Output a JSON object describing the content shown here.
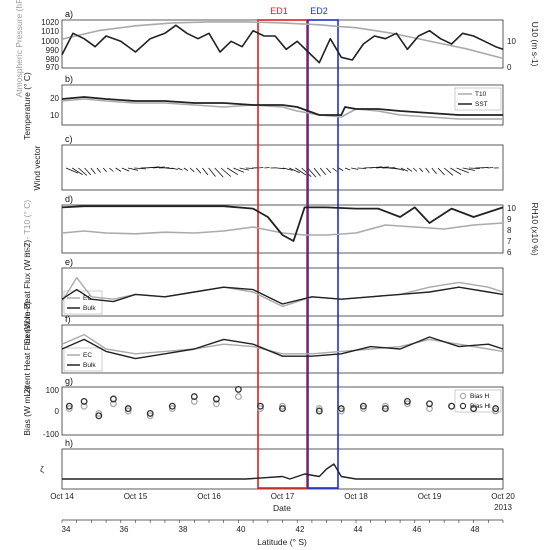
{
  "chart_data": [
    {
      "type": "line",
      "panel_label": "a)",
      "ylabel_left": "Atmospheric Pressure (hPa)",
      "ylabel_right": "U10 (m s-1)",
      "yticks_left": [
        "1020",
        "1010",
        "1000",
        "990",
        "980",
        "970"
      ],
      "yticks_right": [
        "10",
        "0"
      ],
      "ylim_left": [
        970,
        1020
      ],
      "ylim_right": [
        0,
        18
      ],
      "series": [
        {
          "name": "Atmospheric Pressure",
          "axis": "left",
          "color": "#aaaaaa",
          "x": [
            14,
            14.5,
            15,
            15.5,
            16,
            16.5,
            17,
            17.5,
            17.8,
            18,
            18.5,
            19,
            19.5,
            20
          ],
          "y": [
            1000,
            1009,
            1014,
            1017,
            1018,
            1018,
            1017,
            1015,
            1013,
            1012,
            1006,
            998,
            990,
            980
          ]
        },
        {
          "name": "U10",
          "axis": "right",
          "color": "#222222",
          "x": [
            14,
            14.15,
            14.3,
            14.45,
            14.6,
            14.8,
            15,
            15.2,
            15.4,
            15.55,
            15.7,
            15.85,
            16,
            16.15,
            16.3,
            16.45,
            16.6,
            16.75,
            16.9,
            17.05,
            17.2,
            17.35,
            17.5,
            17.65,
            17.8,
            17.95,
            18.1,
            18.25,
            18.4,
            18.55,
            18.7,
            18.85,
            19,
            19.15,
            19.3,
            19.45,
            19.6,
            19.75,
            19.9,
            20
          ],
          "y": [
            5,
            13,
            11,
            8,
            12,
            10,
            6,
            11,
            13,
            16,
            13,
            11,
            13,
            6,
            10,
            8,
            14,
            12,
            12,
            7,
            10,
            6,
            2,
            11,
            4,
            3,
            9,
            12,
            11,
            13,
            7,
            12,
            14,
            11,
            9,
            13,
            12,
            10,
            8,
            7
          ]
        }
      ]
    },
    {
      "type": "line",
      "panel_label": "b)",
      "ylabel": "Temperature (° C)",
      "yticks": [
        "20",
        "10"
      ],
      "ylim": [
        5,
        25
      ],
      "legend": [
        "T10",
        "SST"
      ],
      "legend_position": "top-right",
      "series": [
        {
          "name": "T10",
          "color": "#aaaaaa",
          "x": [
            14,
            14.3,
            14.6,
            15,
            15.4,
            15.8,
            16.2,
            16.6,
            17,
            17.2,
            17.5,
            17.8,
            18,
            18.3,
            18.6,
            19,
            19.4,
            19.8,
            20
          ],
          "y": [
            17,
            18,
            17,
            16,
            16,
            15,
            14,
            15,
            14,
            12,
            10,
            9,
            13,
            12,
            10,
            9,
            8,
            8,
            8
          ]
        },
        {
          "name": "SST",
          "color": "#222222",
          "x": [
            14,
            14.3,
            14.6,
            15,
            15.4,
            15.8,
            16.2,
            16.6,
            17,
            17.2,
            17.5,
            17.6,
            17.8,
            17.85,
            18,
            18.3,
            18.6,
            19,
            19.4,
            19.8,
            20
          ],
          "y": [
            18,
            19,
            18,
            17,
            17,
            16,
            16,
            15,
            15,
            14,
            10,
            10,
            10,
            14,
            13,
            13,
            12,
            11,
            10,
            10,
            10
          ]
        }
      ]
    },
    {
      "type": "quiver",
      "panel_label": "c)",
      "ylabel": "Wind vector",
      "description": "Arrows along time axis"
    },
    {
      "type": "line",
      "panel_label": "d)",
      "ylabel_left": "SST - T10 (° C)",
      "ylabel_right": "RH10 (x10 %)",
      "yticks_right": [
        "10",
        "9",
        "8",
        "7",
        "6"
      ],
      "ylim_right": [
        6,
        10
      ],
      "series": [
        {
          "name": "SST - T10",
          "axis": "left",
          "color": "#aaaaaa",
          "x": [
            14,
            14.3,
            14.6,
            15,
            15.4,
            15.8,
            16.2,
            16.6,
            17,
            17.3,
            17.6,
            18,
            18.4,
            18.8,
            19.2,
            19.6,
            20
          ],
          "y": [
            1,
            1.5,
            1,
            0.8,
            1.2,
            1,
            1.5,
            2.5,
            1,
            0.5,
            0.5,
            1,
            3,
            2.5,
            2,
            3,
            3.5
          ]
        },
        {
          "name": "RH10",
          "axis": "right",
          "color": "#222222",
          "x": [
            14,
            14.3,
            14.6,
            15,
            15.4,
            15.8,
            16.2,
            16.6,
            16.8,
            17,
            17.15,
            17.3,
            17.6,
            18,
            18.3,
            18.6,
            18.8,
            19,
            19.3,
            19.6,
            20
          ],
          "y": [
            9.8,
            9.9,
            9.9,
            9.9,
            9.9,
            9.9,
            9.9,
            9.7,
            9,
            7.5,
            7,
            9.8,
            9.8,
            9.7,
            9.7,
            9,
            9.8,
            8.5,
            9.7,
            9,
            9.8
          ]
        }
      ]
    },
    {
      "type": "line",
      "panel_label": "e)",
      "ylabel": "Sensible Heat Flux (W m-2)",
      "legend": [
        "EC",
        "Bulk"
      ],
      "legend_position": "bottom-left",
      "series": [
        {
          "name": "EC",
          "color": "#aaaaaa",
          "x": [
            14,
            14.2,
            14.4,
            14.7,
            15,
            15.4,
            15.8,
            16.2,
            16.6,
            17,
            17.4,
            17.8,
            18.2,
            18.6,
            19,
            19.4,
            19.8,
            20
          ],
          "y": [
            -10,
            40,
            0,
            -5,
            5,
            0,
            10,
            20,
            10,
            -20,
            0,
            -5,
            0,
            5,
            20,
            30,
            20,
            10
          ]
        },
        {
          "name": "Bulk",
          "color": "#222222",
          "x": [
            14,
            14.2,
            14.4,
            14.7,
            15,
            15.4,
            15.8,
            16.2,
            16.6,
            17,
            17.4,
            17.8,
            18.2,
            18.6,
            19,
            19.4,
            19.8,
            20
          ],
          "y": [
            -5,
            15,
            -5,
            -10,
            5,
            0,
            10,
            20,
            15,
            -15,
            0,
            -5,
            0,
            5,
            10,
            20,
            10,
            5
          ]
        }
      ]
    },
    {
      "type": "line",
      "panel_label": "f)",
      "ylabel": "Latent Heat Flux (W m-2)",
      "legend": [
        "EC",
        "Bulk"
      ],
      "legend_position": "bottom-left",
      "series": [
        {
          "name": "EC",
          "color": "#aaaaaa",
          "x": [
            14,
            14.3,
            14.6,
            15,
            15.4,
            15.8,
            16.2,
            16.6,
            17,
            17.4,
            17.8,
            18.2,
            18.6,
            19,
            19.4,
            19.8,
            20
          ],
          "y": [
            20,
            40,
            10,
            0,
            5,
            10,
            20,
            15,
            0,
            0,
            5,
            10,
            15,
            30,
            20,
            10,
            5
          ]
        },
        {
          "name": "Bulk",
          "color": "#222222",
          "x": [
            14,
            14.3,
            14.6,
            15,
            15.4,
            15.8,
            16.2,
            16.6,
            17,
            17.4,
            17.8,
            18.2,
            18.6,
            19,
            19.4,
            19.8,
            20
          ],
          "y": [
            10,
            30,
            5,
            -10,
            0,
            10,
            30,
            20,
            -5,
            -5,
            0,
            15,
            10,
            35,
            15,
            20,
            10
          ]
        }
      ]
    },
    {
      "type": "scatter",
      "panel_label": "g)",
      "ylabel": "Bias (W m-2)",
      "yticks": [
        "100",
        "0",
        "-100"
      ],
      "ylim": [
        -100,
        100
      ],
      "legend": [
        "Bias H",
        "Bias Hl"
      ],
      "legend_position": "top-right",
      "series": [
        {
          "name": "Bias H",
          "color": "#aaaaaa",
          "x": [
            14.1,
            14.3,
            14.5,
            14.7,
            14.9,
            15.2,
            15.5,
            15.8,
            16.1,
            16.4,
            16.7,
            17.0,
            17.5,
            17.8,
            18.1,
            18.4,
            18.7,
            19.0,
            19.3,
            19.6,
            19.9
          ],
          "y": [
            10,
            20,
            -10,
            30,
            0,
            -20,
            10,
            40,
            30,
            60,
            10,
            20,
            10,
            0,
            10,
            20,
            30,
            10,
            20,
            10,
            0
          ]
        },
        {
          "name": "Bias Hl",
          "color": "#333333",
          "x": [
            14.1,
            14.3,
            14.5,
            14.7,
            14.9,
            15.2,
            15.5,
            15.8,
            16.1,
            16.4,
            16.7,
            17.0,
            17.5,
            17.8,
            18.1,
            18.4,
            18.7,
            19.0,
            19.3,
            19.6,
            19.9
          ],
          "y": [
            20,
            40,
            -20,
            50,
            10,
            -10,
            20,
            60,
            50,
            90,
            20,
            10,
            0,
            10,
            20,
            10,
            40,
            30,
            20,
            10,
            10
          ]
        }
      ]
    },
    {
      "type": "line",
      "panel_label": "h)",
      "ylabel": "ζ",
      "series": [
        {
          "name": "ζ",
          "color": "#222222",
          "x": [
            14,
            14.5,
            15,
            15.5,
            16,
            16.5,
            17,
            17.1,
            17.3,
            17.5,
            17.6,
            17.7,
            17.8,
            18,
            18.5,
            19,
            19.5,
            20
          ],
          "y": [
            0,
            0,
            0,
            0,
            0,
            0,
            0.5,
            0,
            1,
            0.5,
            2,
            3,
            0.5,
            0,
            0,
            0,
            0,
            0
          ]
        }
      ]
    }
  ],
  "x_axis": {
    "label": "Date",
    "ticks": [
      "Oct 14",
      "Oct 15",
      "Oct 16",
      "Oct 17",
      "Oct 18",
      "Oct 19",
      "Oct 20"
    ],
    "year": "2013"
  },
  "latitude_axis": {
    "label": "Latitude (° S)",
    "ticks": [
      "34",
      "36",
      "38",
      "40",
      "42",
      "44",
      "46",
      "48"
    ]
  },
  "events": [
    {
      "label": "ED1",
      "color": "#e02020"
    },
    {
      "label": "ED2",
      "color": "#1f32c8"
    }
  ]
}
